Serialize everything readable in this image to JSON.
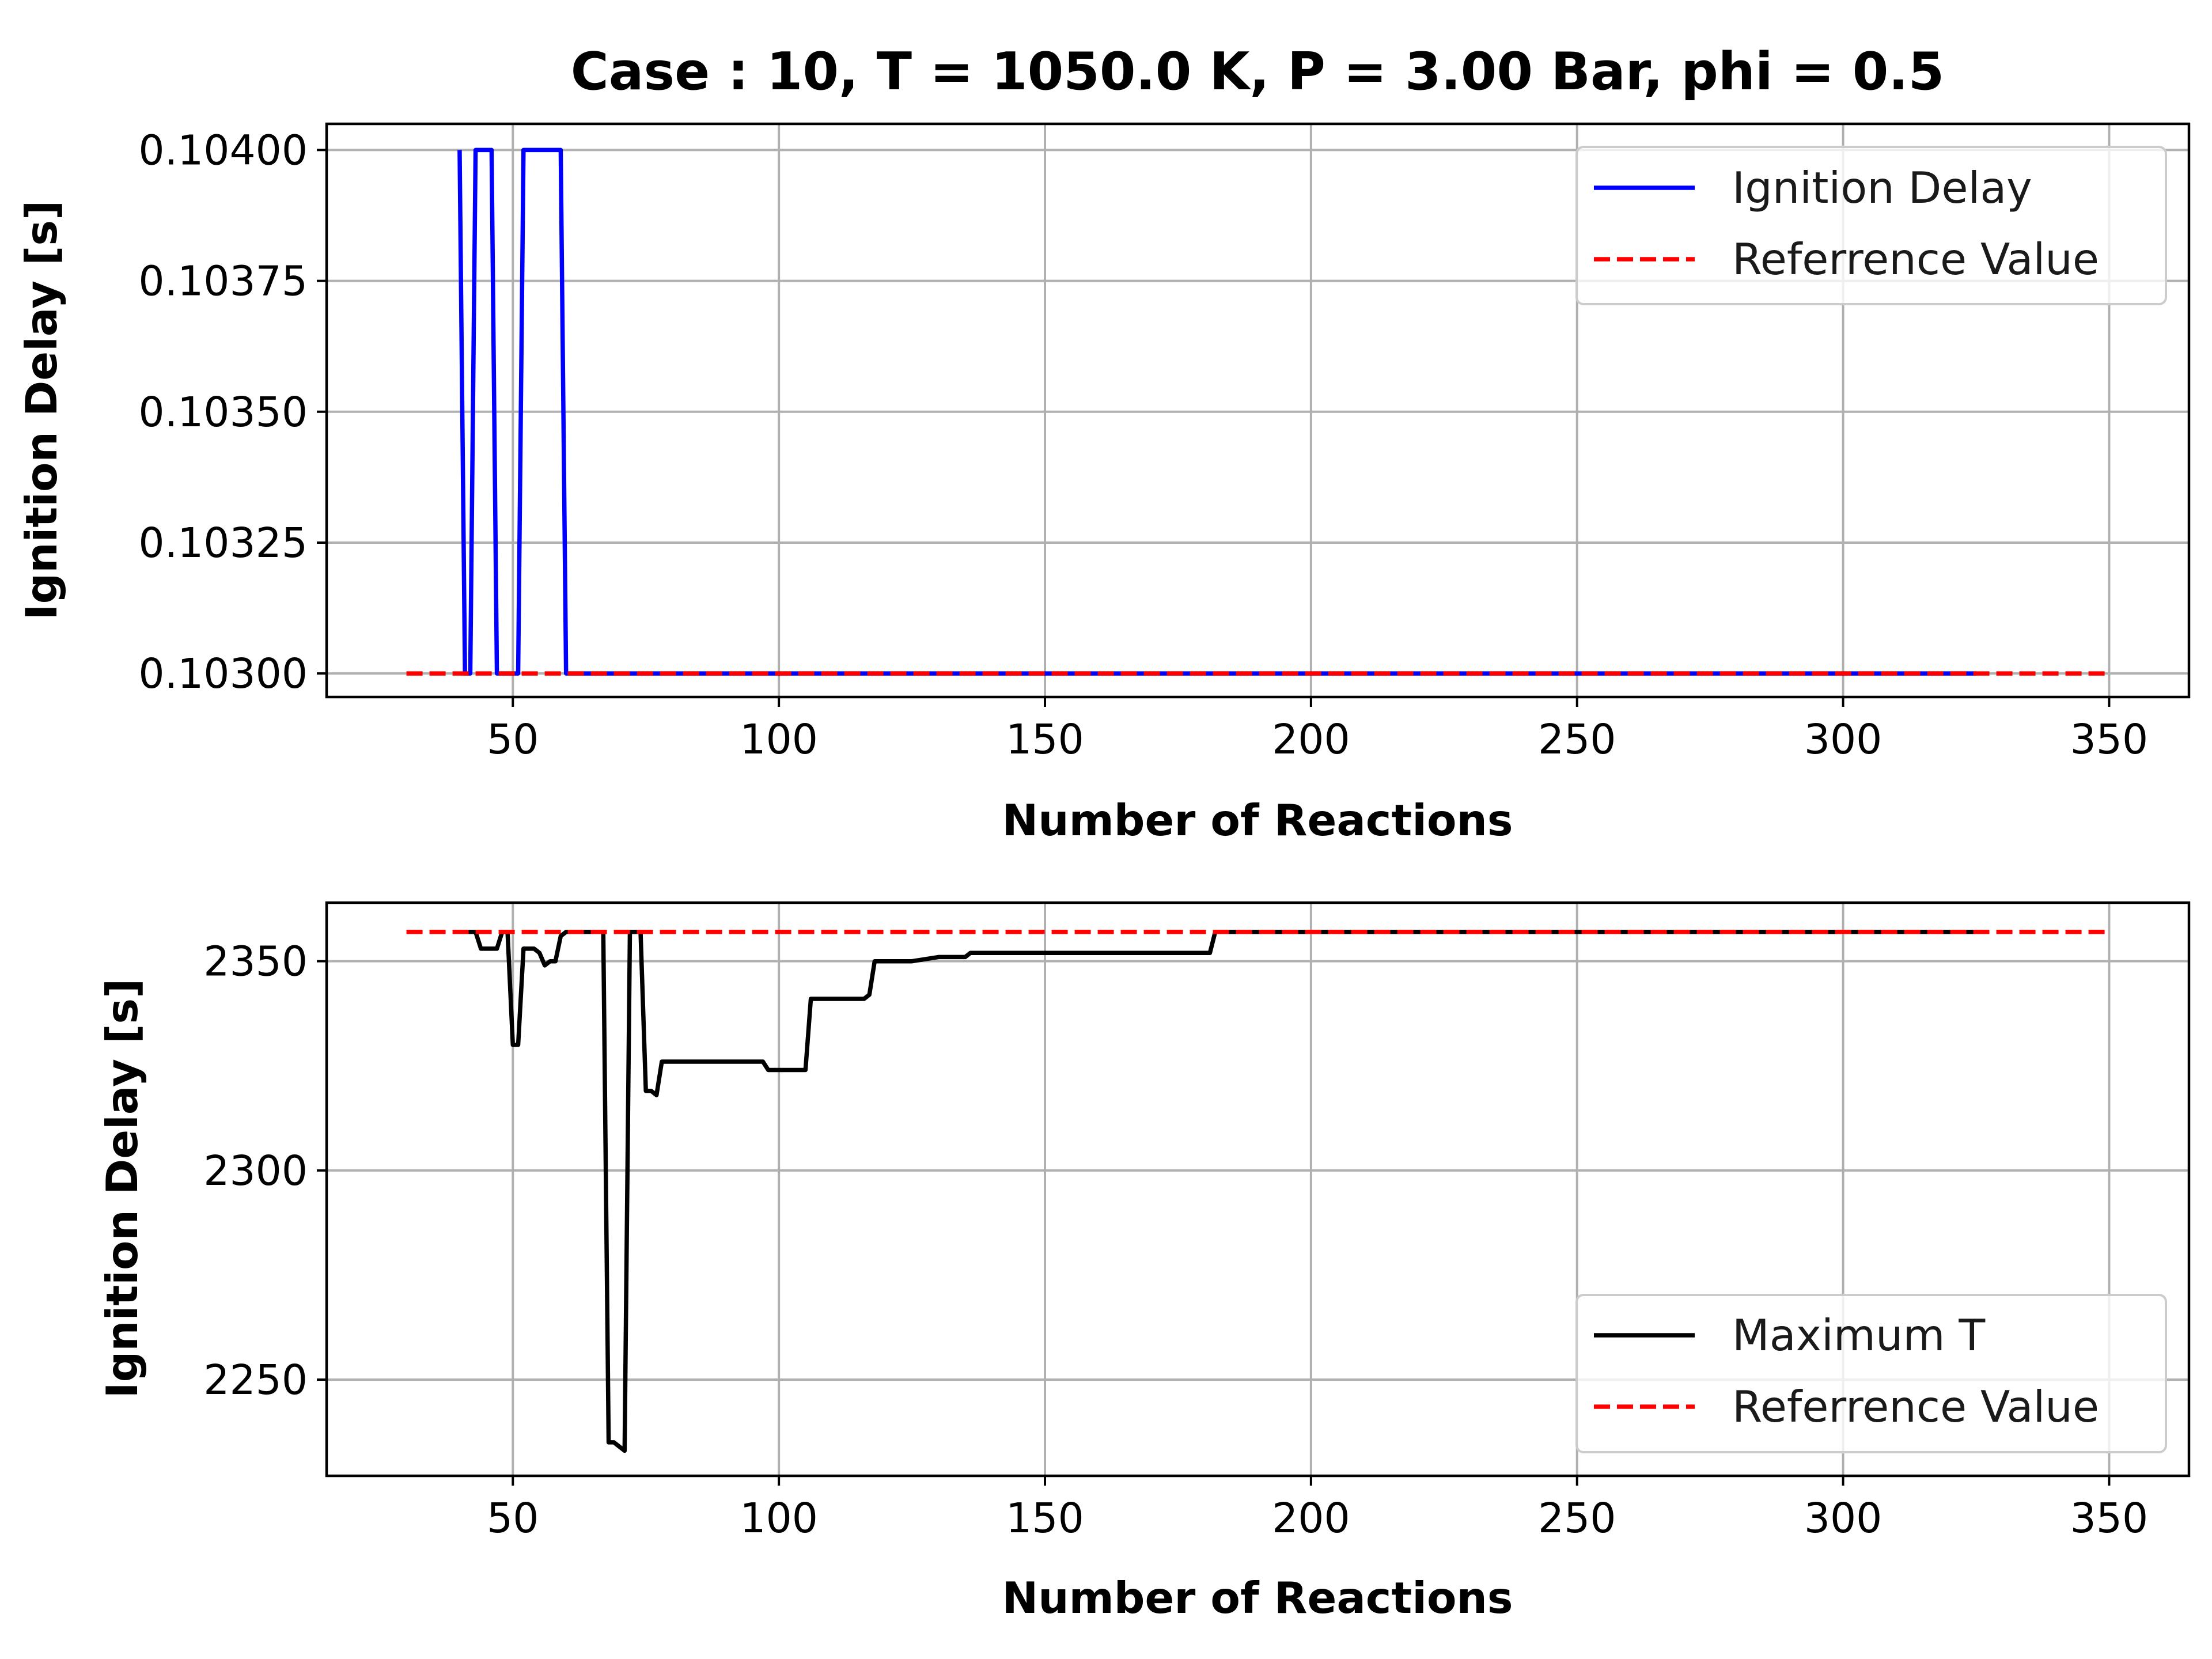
{
  "chart_data": [
    {
      "type": "line",
      "title": "Case : 10, T = 1050.0 K, P = 3.00 Bar, phi = 0.5",
      "xlabel": "Number of Reactions",
      "ylabel": "Ignition Delay [s]",
      "xlim": [
        15,
        365
      ],
      "ylim": [
        0.102955,
        0.10405
      ],
      "xticks": [
        50,
        100,
        150,
        200,
        250,
        300,
        350
      ],
      "xtick_labels": [
        "50",
        "100",
        "150",
        "200",
        "250",
        "300",
        "350"
      ],
      "yticks": [
        0.103,
        0.10325,
        0.1035,
        0.10375,
        0.104
      ],
      "ytick_labels": [
        "0.10300",
        "0.10325",
        "0.10350",
        "0.10375",
        "0.10400"
      ],
      "grid": true,
      "legend_position": "upper right",
      "series": [
        {
          "name": "Ignition Delay",
          "color": "#0000ff",
          "style": "solid",
          "x": [
            40,
            41,
            42,
            43,
            46,
            47,
            50,
            51,
            52,
            59,
            60,
            325
          ],
          "y": [
            0.104,
            0.103,
            0.103,
            0.104,
            0.104,
            0.103,
            0.103,
            0.103,
            0.104,
            0.104,
            0.103,
            0.103
          ]
        },
        {
          "name": "Referrence Value",
          "color": "#ff0000",
          "style": "dashed",
          "x": [
            30,
            350
          ],
          "y": [
            0.103,
            0.103
          ]
        }
      ]
    },
    {
      "type": "line",
      "title": "",
      "xlabel": "Number of Reactions",
      "ylabel": "Ignition Delay [s]",
      "xlim": [
        15,
        365
      ],
      "ylim": [
        2227,
        2364
      ],
      "xticks": [
        50,
        100,
        150,
        200,
        250,
        300,
        350
      ],
      "xtick_labels": [
        "50",
        "100",
        "150",
        "200",
        "250",
        "300",
        "350"
      ],
      "yticks": [
        2250,
        2300,
        2350
      ],
      "ytick_labels": [
        "2250",
        "2300",
        "2350"
      ],
      "grid": true,
      "legend_position": "lower right",
      "series": [
        {
          "name": "Maximum T",
          "color": "#000000",
          "style": "solid",
          "x": [
            40,
            43,
            44,
            47,
            48,
            49,
            50,
            51,
            52,
            54,
            55,
            56,
            57,
            58,
            59,
            60,
            62,
            67,
            68,
            69,
            70,
            71,
            72,
            73,
            74,
            75,
            76,
            77,
            78,
            80,
            85,
            90,
            95,
            97,
            98,
            100,
            104,
            105,
            106,
            110,
            116,
            117,
            118,
            120,
            125,
            130,
            135,
            136,
            140,
            150,
            160,
            170,
            181,
            182,
            200,
            250,
            300,
            325
          ],
          "y": [
            2357,
            2357,
            2353,
            2353,
            2357,
            2357,
            2330,
            2330,
            2353,
            2353,
            2352,
            2349,
            2350,
            2350,
            2356,
            2357,
            2357,
            2357,
            2235,
            2235,
            2234,
            2233,
            2357,
            2357,
            2357,
            2319,
            2319,
            2318,
            2326,
            2326,
            2326,
            2326,
            2326,
            2326,
            2324,
            2324,
            2324,
            2324,
            2341,
            2341,
            2341,
            2342,
            2350,
            2350,
            2350,
            2351,
            2351,
            2352,
            2352,
            2352,
            2352,
            2352,
            2352,
            2357,
            2357,
            2357,
            2357,
            2357
          ]
        },
        {
          "name": "Referrence Value",
          "color": "#ff0000",
          "style": "dashed",
          "x": [
            30,
            350
          ],
          "y": [
            2357,
            2357
          ]
        }
      ]
    }
  ]
}
